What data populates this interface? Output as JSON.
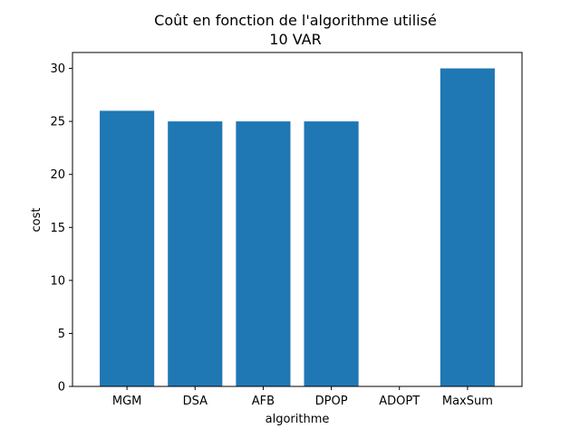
{
  "chart_data": {
    "type": "bar",
    "title": "Coût en fonction de l'algorithme utilisé",
    "subtitle": "10 VAR",
    "xlabel": "algorithme",
    "ylabel": "cost",
    "categories": [
      "MGM",
      "DSA",
      "AFB",
      "DPOP",
      "ADOPT",
      "MaxSum"
    ],
    "values": [
      26,
      25,
      25,
      25,
      0,
      30
    ],
    "ylim": [
      0,
      31.5
    ],
    "yticks": [
      0,
      5,
      10,
      15,
      20,
      25,
      30
    ],
    "grid": false,
    "bar_color": "#1f77b4"
  }
}
